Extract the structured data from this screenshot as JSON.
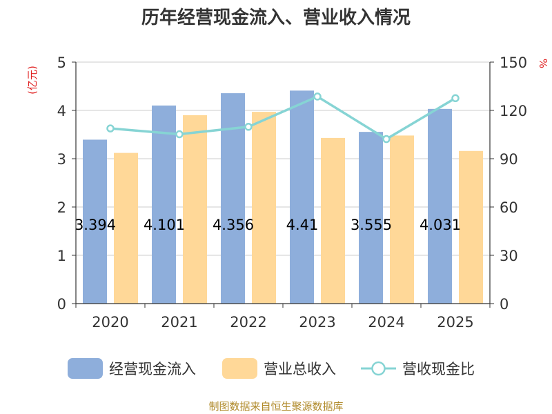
{
  "chart_data": {
    "type": "bar",
    "title": "历年经营现金流入、营业收入情况",
    "categories": [
      "2020",
      "2021",
      "2022",
      "2023",
      "2024",
      "2025"
    ],
    "series": [
      {
        "name": "经营现金流入",
        "axis": "left",
        "color": "#8eaedb",
        "values": [
          3.394,
          4.101,
          4.356,
          4.41,
          3.555,
          4.031
        ]
      },
      {
        "name": "营业总收入",
        "axis": "left",
        "color": "#ffd898",
        "values": [
          3.12,
          3.9,
          3.97,
          3.43,
          3.48,
          3.16
        ]
      },
      {
        "name": "营收现金比",
        "type": "line",
        "axis": "right",
        "color": "#86d4d4",
        "values": [
          108.8,
          105.2,
          109.8,
          128.6,
          102.2,
          127.6
        ]
      }
    ],
    "data_labels": [
      "3.394",
      "4.101",
      "4.356",
      "4.41",
      "3.555",
      "4.031"
    ],
    "y_left": {
      "unit": "(亿元)",
      "ylim": [
        0,
        5
      ],
      "ticks": [
        "0",
        "1",
        "2",
        "3",
        "4",
        "5"
      ]
    },
    "y_right": {
      "unit": "%",
      "ylim": [
        0,
        150
      ],
      "ticks": [
        "0",
        "30",
        "60",
        "90",
        "120",
        "150"
      ]
    },
    "grid": true,
    "legend_position": "bottom"
  },
  "source": "制图数据来自恒生聚源数据库"
}
